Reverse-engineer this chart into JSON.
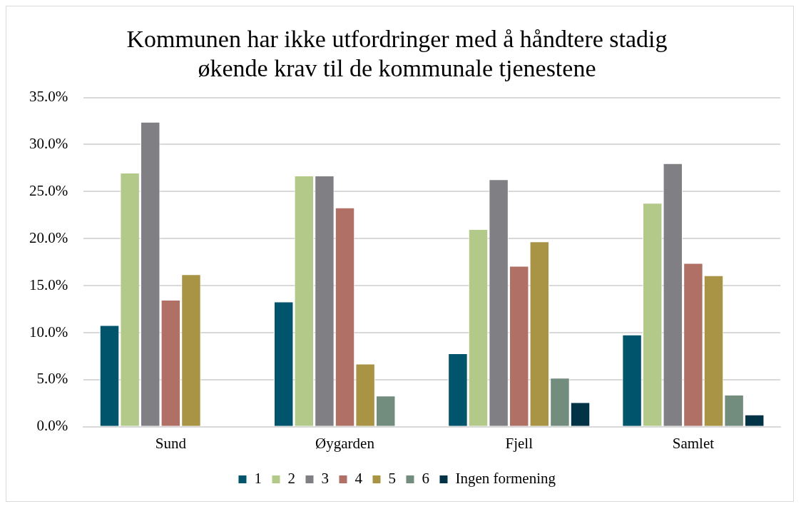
{
  "chart_data": {
    "type": "bar",
    "title": "Kommunen har ikke utfordringer med å håndtere stadig økende krav til de kommunale tjenestene",
    "categories": [
      "Sund",
      "Øygarden",
      "Fjell",
      "Samlet"
    ],
    "series": [
      {
        "name": "1",
        "color": "#00546c",
        "values": [
          10.8,
          13.3,
          7.8,
          9.8
        ]
      },
      {
        "name": "2",
        "color": "#b3c98a",
        "values": [
          27.0,
          26.7,
          21.0,
          23.8
        ]
      },
      {
        "name": "3",
        "color": "#807f84",
        "values": [
          32.4,
          26.7,
          26.3,
          28.0
        ]
      },
      {
        "name": "4",
        "color": "#b07066",
        "values": [
          13.5,
          23.3,
          17.1,
          17.4
        ]
      },
      {
        "name": "5",
        "color": "#a89444",
        "values": [
          16.2,
          6.7,
          19.7,
          16.1
        ]
      },
      {
        "name": "6",
        "color": "#728c7e",
        "values": [
          0,
          3.3,
          5.2,
          3.4
        ]
      },
      {
        "name": "Ingen formening",
        "color": "#003345",
        "values": [
          0,
          0,
          2.6,
          1.3
        ]
      }
    ],
    "ylim": [
      0,
      35
    ],
    "yticks": [
      {
        "value": 0,
        "label": "0.0%"
      },
      {
        "value": 5,
        "label": "5.0%"
      },
      {
        "value": 10,
        "label": "10.0%"
      },
      {
        "value": 15,
        "label": "15.0%"
      },
      {
        "value": 20,
        "label": "20.0%"
      },
      {
        "value": 25,
        "label": "25.0%"
      },
      {
        "value": 30,
        "label": "30.0%"
      },
      {
        "value": 35,
        "label": "35.0%"
      }
    ],
    "grid": "y",
    "legend": "bottom"
  }
}
